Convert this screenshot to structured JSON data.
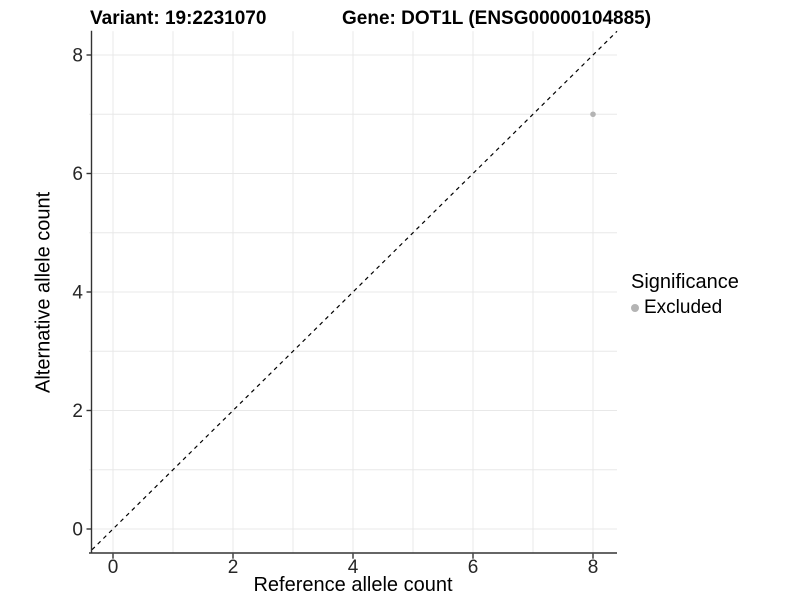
{
  "titles": {
    "variant": "Variant: 19:2231070",
    "gene": "Gene: DOT1L (ENSG00000104885)"
  },
  "legend": {
    "title": "Significance",
    "items": [
      {
        "label": "Excluded",
        "color": "#b4b4b4"
      }
    ]
  },
  "chart_data": {
    "type": "scatter",
    "title_left": "Variant: 19:2231070",
    "title_right": "Gene: DOT1L (ENSG00000104885)",
    "xlabel": "Reference allele count",
    "ylabel": "Alternative allele count",
    "xlim": [
      -0.4,
      8.4
    ],
    "ylim": [
      -0.4,
      8.4
    ],
    "x_ticks": [
      0,
      2,
      4,
      6,
      8
    ],
    "y_ticks": [
      0,
      2,
      4,
      6,
      8
    ],
    "grid": "on",
    "gridline_step": 1,
    "legend_title": "Significance",
    "legend_position": "right",
    "series": [
      {
        "name": "Excluded",
        "color": "#b4b4b4",
        "points": [
          {
            "x": 8,
            "y": 7
          }
        ]
      }
    ],
    "reference_line": {
      "type": "identity",
      "slope": 1,
      "intercept": 0,
      "style": "dashed",
      "color": "#000000"
    }
  },
  "colors": {
    "grid": "#e8e8e8",
    "axis": "#333333",
    "tick_label": "#262626",
    "point": "#b4b4b4"
  }
}
